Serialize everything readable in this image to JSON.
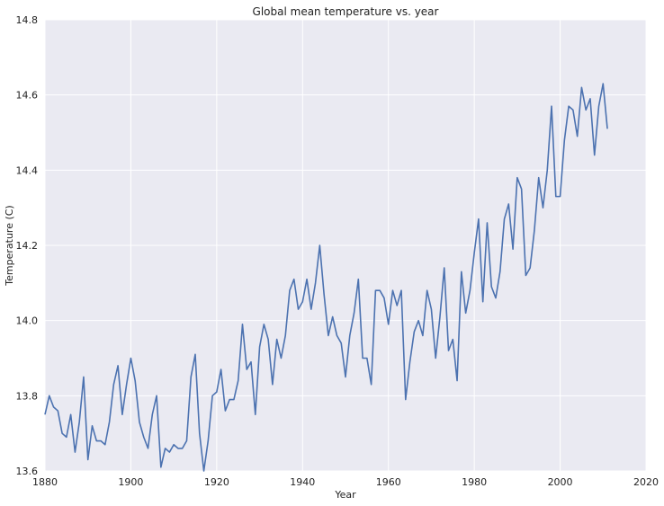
{
  "chart_data": {
    "type": "line",
    "title": "Global mean temperature vs. year",
    "xlabel": "Year",
    "ylabel": "Temperature (C)",
    "xlim": [
      1880,
      2020
    ],
    "ylim": [
      13.6,
      14.8
    ],
    "x_ticks": [
      1880,
      1900,
      1920,
      1940,
      1960,
      1980,
      2000,
      2020
    ],
    "y_ticks": [
      13.6,
      13.8,
      14.0,
      14.2,
      14.4,
      14.6,
      14.8
    ],
    "x_tick_labels": [
      "1880",
      "1900",
      "1920",
      "1940",
      "1960",
      "1980",
      "2000",
      "2020"
    ],
    "y_tick_labels": [
      "13.6",
      "13.8",
      "14.0",
      "14.2",
      "14.4",
      "14.6",
      "14.8"
    ],
    "grid": true,
    "background_color": "#EAEAF2",
    "grid_color": "#FFFFFF",
    "line_color": "#4C72B0",
    "x": [
      1880,
      1881,
      1882,
      1883,
      1884,
      1885,
      1886,
      1887,
      1888,
      1889,
      1890,
      1891,
      1892,
      1893,
      1894,
      1895,
      1896,
      1897,
      1898,
      1899,
      1900,
      1901,
      1902,
      1903,
      1904,
      1905,
      1906,
      1907,
      1908,
      1909,
      1910,
      1911,
      1912,
      1913,
      1914,
      1915,
      1916,
      1917,
      1918,
      1919,
      1920,
      1921,
      1922,
      1923,
      1924,
      1925,
      1926,
      1927,
      1928,
      1929,
      1930,
      1931,
      1932,
      1933,
      1934,
      1935,
      1936,
      1937,
      1938,
      1939,
      1940,
      1941,
      1942,
      1943,
      1944,
      1945,
      1946,
      1947,
      1948,
      1949,
      1950,
      1951,
      1952,
      1953,
      1954,
      1955,
      1956,
      1957,
      1958,
      1959,
      1960,
      1961,
      1962,
      1963,
      1964,
      1965,
      1966,
      1967,
      1968,
      1969,
      1970,
      1971,
      1972,
      1973,
      1974,
      1975,
      1976,
      1977,
      1978,
      1979,
      1980,
      1981,
      1982,
      1983,
      1984,
      1985,
      1986,
      1987,
      1988,
      1989,
      1990,
      1991,
      1992,
      1993,
      1994,
      1995,
      1996,
      1997,
      1998,
      1999,
      2000,
      2001,
      2002,
      2003,
      2004,
      2005,
      2006,
      2007,
      2008,
      2009,
      2010,
      2011
    ],
    "y": [
      13.75,
      13.8,
      13.77,
      13.76,
      13.7,
      13.69,
      13.75,
      13.65,
      13.73,
      13.85,
      13.63,
      13.72,
      13.68,
      13.68,
      13.67,
      13.73,
      13.83,
      13.88,
      13.75,
      13.83,
      13.9,
      13.84,
      13.73,
      13.69,
      13.66,
      13.75,
      13.8,
      13.61,
      13.66,
      13.65,
      13.67,
      13.66,
      13.66,
      13.68,
      13.85,
      13.91,
      13.7,
      13.6,
      13.68,
      13.8,
      13.81,
      13.87,
      13.76,
      13.79,
      13.79,
      13.84,
      13.99,
      13.87,
      13.89,
      13.75,
      13.93,
      13.99,
      13.95,
      13.83,
      13.95,
      13.9,
      13.96,
      14.08,
      14.11,
      14.03,
      14.05,
      14.11,
      14.03,
      14.1,
      14.2,
      14.07,
      13.96,
      14.01,
      13.96,
      13.94,
      13.85,
      13.96,
      14.02,
      14.11,
      13.9,
      13.9,
      13.83,
      14.08,
      14.08,
      14.06,
      13.99,
      14.08,
      14.04,
      14.08,
      13.79,
      13.89,
      13.97,
      14.0,
      13.96,
      14.08,
      14.03,
      13.9,
      14.01,
      14.14,
      13.92,
      13.95,
      13.84,
      14.13,
      14.02,
      14.08,
      14.18,
      14.27,
      14.05,
      14.26,
      14.09,
      14.06,
      14.13,
      14.27,
      14.31,
      14.19,
      14.38,
      14.35,
      14.12,
      14.14,
      14.24,
      14.38,
      14.3,
      14.4,
      14.57,
      14.33,
      14.33,
      14.48,
      14.57,
      14.56,
      14.49,
      14.62,
      14.56,
      14.59,
      14.44,
      14.57,
      14.63,
      14.51
    ]
  }
}
